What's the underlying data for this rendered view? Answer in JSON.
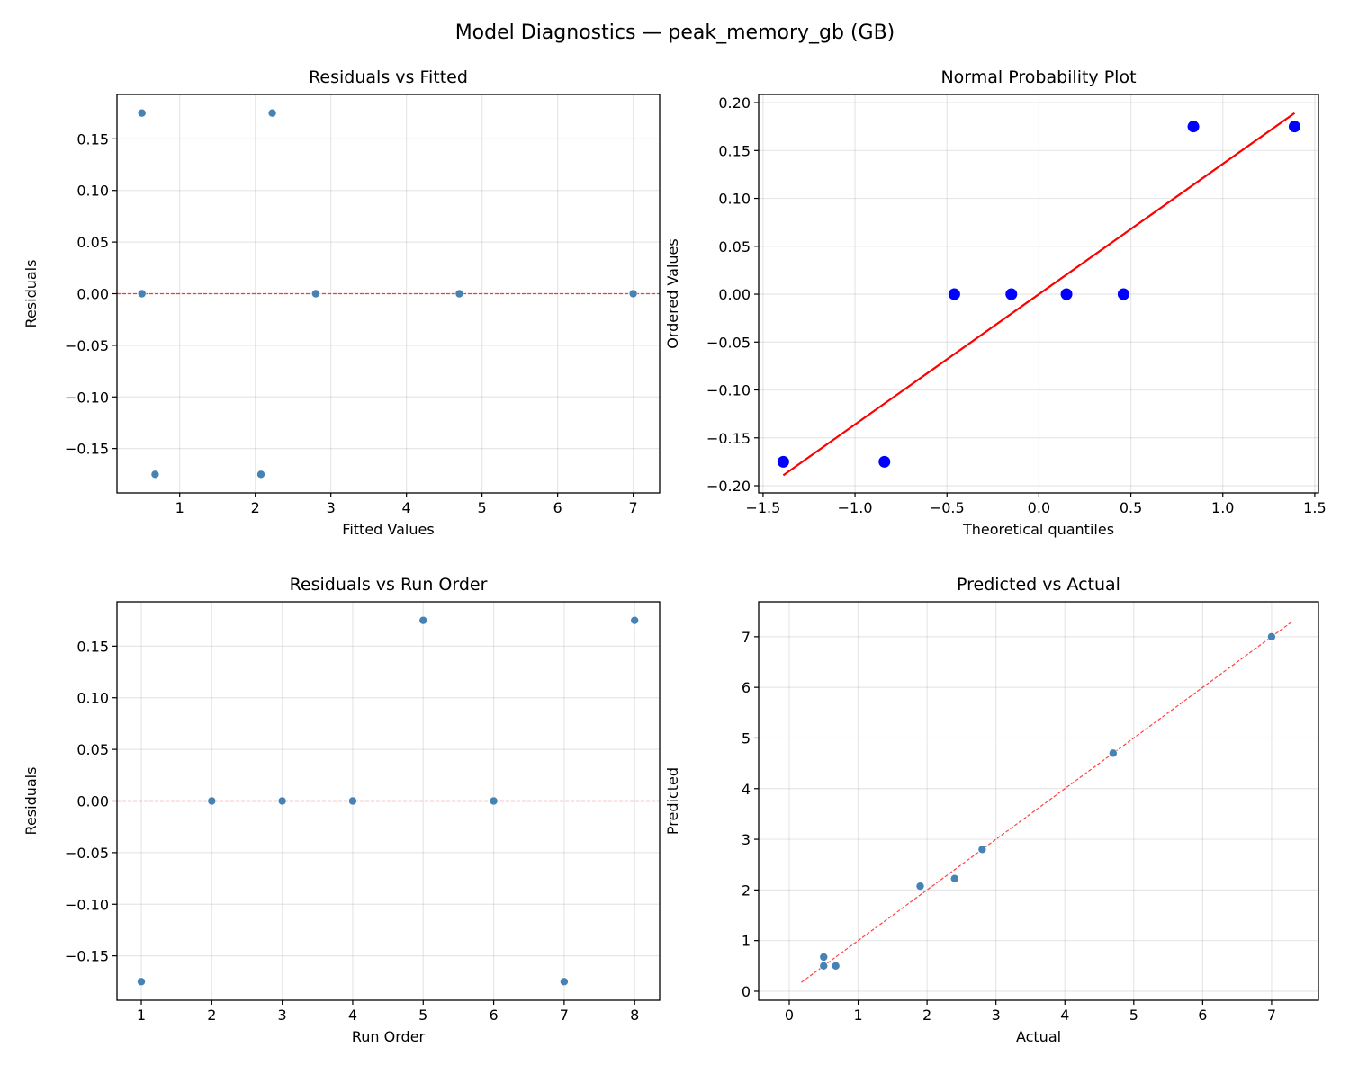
{
  "figure": {
    "title": "Model Diagnostics — peak_memory_gb (GB)"
  },
  "chart_data": [
    {
      "type": "scatter",
      "title": "Residuals vs Fitted",
      "xlabel": "Fitted Values",
      "ylabel": "Residuals",
      "xlim": [
        0.17,
        7.35
      ],
      "ylim": [
        -0.193,
        0.193
      ],
      "xticks": [
        1,
        2,
        3,
        4,
        5,
        6,
        7
      ],
      "yticks": [
        -0.15,
        -0.1,
        -0.05,
        0.0,
        0.05,
        0.1,
        0.15
      ],
      "ytick_labels": [
        "−0.15",
        "−0.10",
        "−0.05",
        "0.00",
        "0.05",
        "0.10",
        "0.15"
      ],
      "grid": true,
      "point_color": "#4682b4",
      "reference_line": {
        "type": "horizontal",
        "y": 0,
        "style": "dashed",
        "color": "#ff0000"
      },
      "x": [
        0.5,
        0.5,
        0.675,
        2.075,
        2.225,
        2.8,
        4.7,
        7.0
      ],
      "y": [
        0.175,
        0.0,
        -0.175,
        -0.175,
        0.175,
        0.0,
        0.0,
        0.0
      ]
    },
    {
      "type": "scatter",
      "title": "Normal Probability Plot",
      "xlabel": "Theoretical quantiles",
      "ylabel": "Ordered Values",
      "xlim": [
        -1.524,
        1.52
      ],
      "ylim": [
        -0.2075,
        0.2085
      ],
      "xticks": [
        -1.5,
        -1.0,
        -0.5,
        0.0,
        0.5,
        1.0,
        1.5
      ],
      "xtick_labels": [
        "−1.5",
        "−1.0",
        "−0.5",
        "0.0",
        "0.5",
        "1.0",
        "1.5"
      ],
      "yticks": [
        -0.2,
        -0.15,
        -0.1,
        -0.05,
        0.0,
        0.05,
        0.1,
        0.15,
        0.2
      ],
      "ytick_labels": [
        "−0.20",
        "−0.15",
        "−0.10",
        "−0.05",
        "0.00",
        "0.05",
        "0.10",
        "0.15",
        "0.20"
      ],
      "grid": true,
      "point_color": "#0000ff",
      "reference_line": {
        "type": "fit",
        "slope": 0.136,
        "intercept": 0.0,
        "x_range": [
          -1.39,
          1.39
        ],
        "style": "solid",
        "color": "#ff0000"
      },
      "x": [
        -1.39,
        -0.84,
        -0.46,
        -0.15,
        0.15,
        0.46,
        0.84,
        1.39
      ],
      "y": [
        -0.175,
        -0.175,
        0.0,
        0.0,
        0.0,
        0.0,
        0.175,
        0.175
      ]
    },
    {
      "type": "scatter",
      "title": "Residuals vs Run Order",
      "xlabel": "Run Order",
      "ylabel": "Residuals",
      "xlim": [
        0.655,
        8.355
      ],
      "ylim": [
        -0.193,
        0.193
      ],
      "xticks": [
        1,
        2,
        3,
        4,
        5,
        6,
        7,
        8
      ],
      "yticks": [
        -0.15,
        -0.1,
        -0.05,
        0.0,
        0.05,
        0.1,
        0.15
      ],
      "ytick_labels": [
        "−0.15",
        "−0.10",
        "−0.05",
        "0.00",
        "0.05",
        "0.10",
        "0.15"
      ],
      "grid": true,
      "point_color": "#4682b4",
      "reference_line": {
        "type": "horizontal",
        "y": 0,
        "style": "dashed",
        "color": "#ff0000"
      },
      "x": [
        1,
        2,
        3,
        4,
        5,
        6,
        7,
        8
      ],
      "y": [
        -0.175,
        0.0,
        0.0,
        0.0,
        0.175,
        0.0,
        -0.175,
        0.175
      ]
    },
    {
      "type": "scatter",
      "title": "Predicted vs Actual",
      "xlabel": "Actual",
      "ylabel": "Predicted",
      "xlim": [
        -0.444,
        7.68
      ],
      "ylim": [
        -0.178,
        7.69
      ],
      "xticks": [
        0,
        1,
        2,
        3,
        4,
        5,
        6,
        7
      ],
      "yticks": [
        0,
        1,
        2,
        3,
        4,
        5,
        6,
        7
      ],
      "grid": true,
      "point_color": "#4682b4",
      "reference_line": {
        "type": "identity",
        "x_range": [
          0.175,
          7.3
        ],
        "style": "dashed",
        "color": "#ff0000"
      },
      "x": [
        0.675,
        0.5,
        0.5,
        1.9,
        2.4,
        2.8,
        4.7,
        7.0
      ],
      "y": [
        0.5,
        0.5,
        0.675,
        2.075,
        2.225,
        2.8,
        4.7,
        7.0
      ]
    }
  ]
}
